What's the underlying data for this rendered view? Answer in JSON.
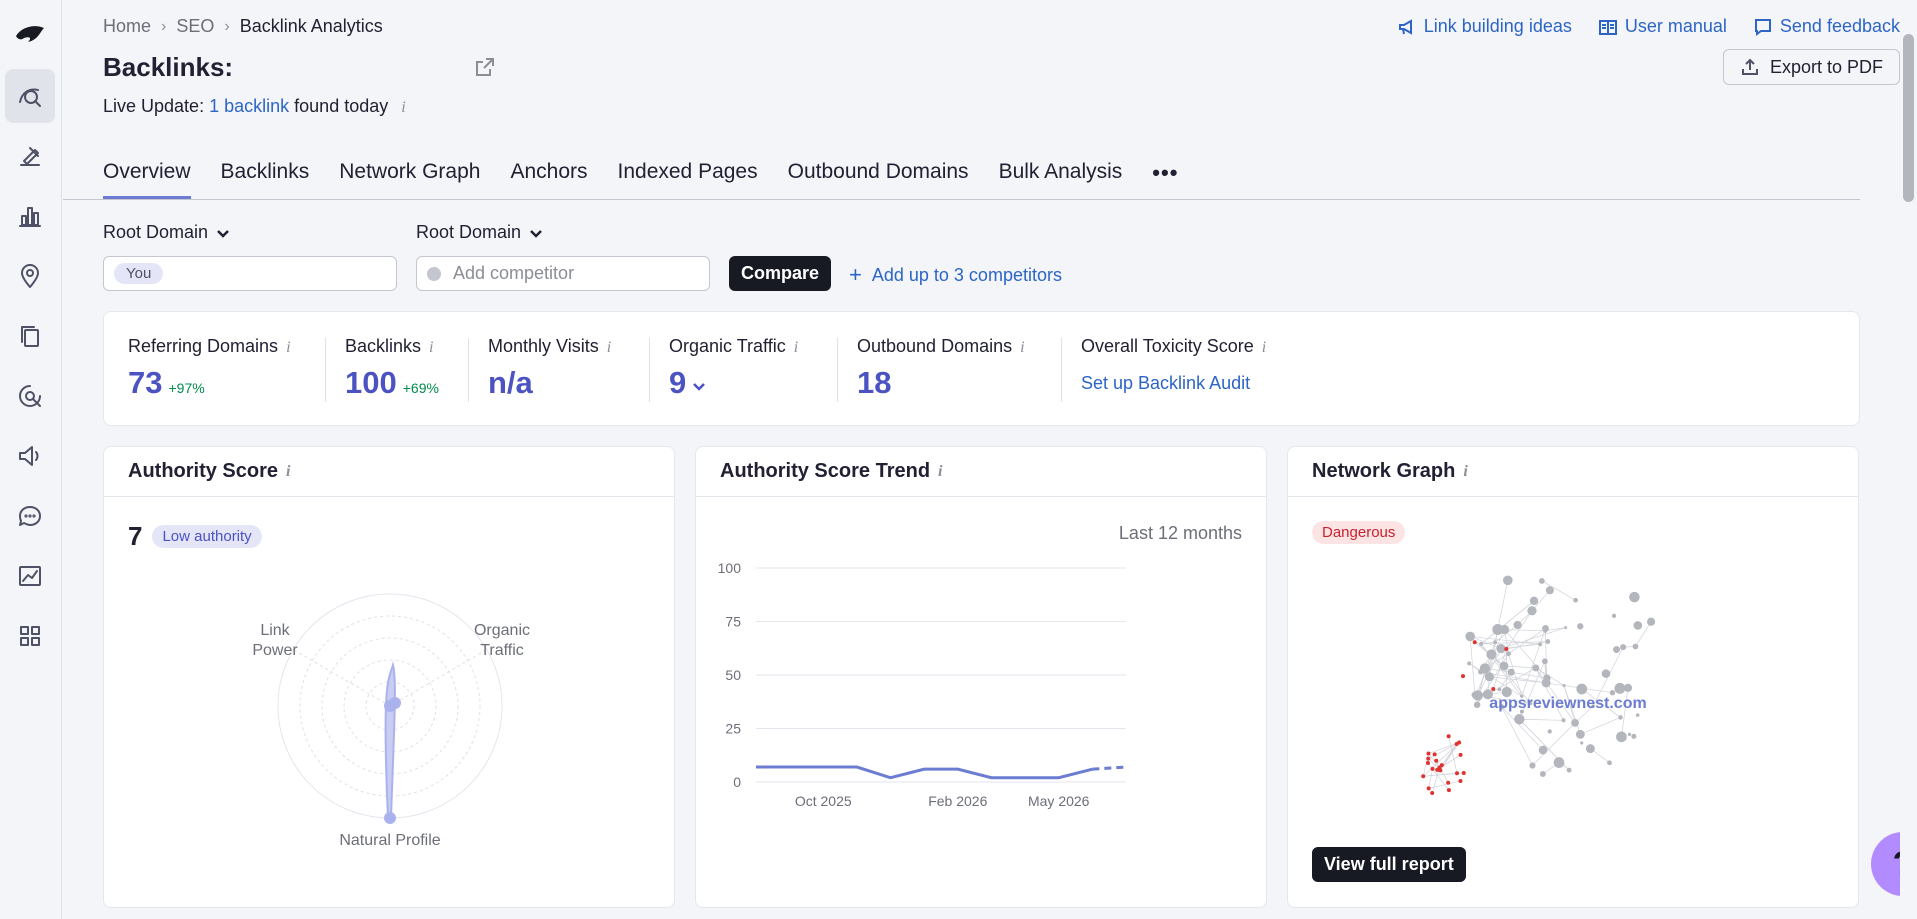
{
  "sidebar": {
    "items": [
      {
        "icon": "seo-icon",
        "active": true
      },
      {
        "icon": "advertising-icon",
        "active": false
      },
      {
        "icon": "analytics-icon",
        "active": false
      },
      {
        "icon": "local-icon",
        "active": false
      },
      {
        "icon": "content-icon",
        "active": false
      },
      {
        "icon": "ai-search-icon",
        "active": false
      },
      {
        "icon": "social-icon",
        "active": false
      },
      {
        "icon": "chat-icon",
        "active": false
      },
      {
        "icon": "reports-icon",
        "active": false
      },
      {
        "icon": "apps-icon",
        "active": false
      }
    ]
  },
  "breadcrumb": [
    "Home",
    "SEO",
    "Backlink Analytics"
  ],
  "toplinks": {
    "link_building": "Link building ideas",
    "user_manual": "User manual",
    "send_feedback": "Send feedback"
  },
  "page": {
    "title": "Backlinks:",
    "export_label": "Export to PDF",
    "live_prefix": "Live Update:",
    "live_link": "1 backlink",
    "live_suffix": "found today"
  },
  "tabs": [
    "Overview",
    "Backlinks",
    "Network Graph",
    "Anchors",
    "Indexed Pages",
    "Outbound Domains",
    "Bulk Analysis"
  ],
  "filters": {
    "scope_1": "Root Domain",
    "scope_2": "Root Domain",
    "you_chip": "You",
    "competitor_placeholder": "Add competitor",
    "compare_label": "Compare",
    "add_up_to": "Add up to 3 competitors"
  },
  "stats": {
    "referring_domains": {
      "label": "Referring Domains",
      "value": "73",
      "delta": "+97%"
    },
    "backlinks": {
      "label": "Backlinks",
      "value": "100",
      "delta": "+69%"
    },
    "monthly_visits": {
      "label": "Monthly Visits",
      "value": "n/a"
    },
    "organic_traffic": {
      "label": "Organic Traffic",
      "value": "9"
    },
    "outbound_domains": {
      "label": "Outbound Domains",
      "value": "18"
    },
    "toxicity": {
      "label": "Overall Toxicity Score",
      "link": "Set up Backlink Audit"
    }
  },
  "authority_card": {
    "title": "Authority Score",
    "score": "7",
    "badge": "Low authority",
    "axis_labels": {
      "link_power_1": "Link",
      "link_power_2": "Power",
      "organic_1": "Organic",
      "organic_2": "Traffic",
      "natural": "Natural Profile"
    }
  },
  "trend_card": {
    "title": "Authority Score Trend",
    "period": "Last 12 months"
  },
  "network_card": {
    "title": "Network Graph",
    "badge": "Dangerous",
    "domain": "appsreviewnest.com",
    "cta": "View full report"
  },
  "help_label": "?",
  "colors": {
    "accent": "#4b52c2",
    "link": "#2c65c6",
    "positive": "#008b4d",
    "danger": "#c81f2d",
    "help": "#b28bff"
  },
  "chart_data": {
    "type": "line",
    "x": [
      "Aug 2025",
      "Sep 2025",
      "Oct 2025",
      "Nov 2025",
      "Dec 2025",
      "Jan 2026",
      "Feb 2026",
      "Mar 2026",
      "Apr 2026",
      "May 2026",
      "Jun 2026",
      "Jul 2026"
    ],
    "values": [
      7,
      7,
      7,
      7,
      2,
      6,
      6,
      2,
      2,
      2,
      6,
      7
    ],
    "projected_from_index": 10,
    "tick_labels_x": [
      "Oct 2025",
      "Feb 2026",
      "May 2026"
    ],
    "yticks": [
      0,
      25,
      50,
      75,
      100
    ],
    "ylim": [
      0,
      100
    ],
    "grid": true,
    "color": "#6c7cd3"
  }
}
